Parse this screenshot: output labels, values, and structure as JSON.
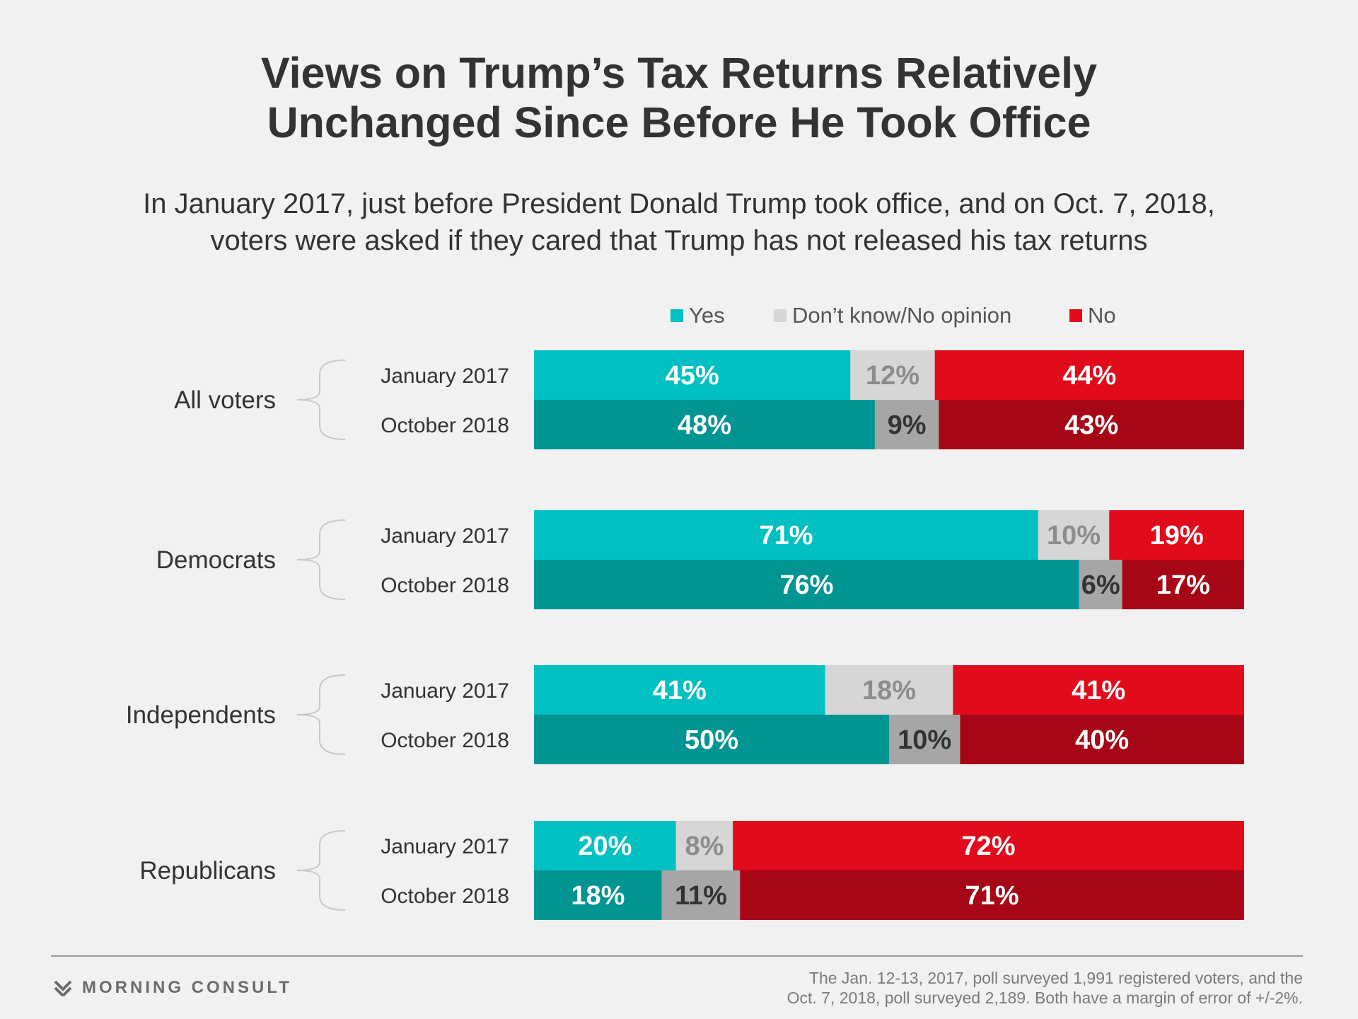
{
  "title_lines": [
    "Views on Trump’s Tax Returns Relatively",
    "Unchanged Since Before He Took Office"
  ],
  "subtitle_lines": [
    "In January 2017, just before President Donald Trump took office, and on Oct. 7, 2018,",
    "voters were asked if they cared that Trump has not released his tax returns"
  ],
  "legend": [
    {
      "label": "Yes",
      "color": "#00c0c2"
    },
    {
      "label": "Don’t know/No opinion",
      "color": "#d6d6d6"
    },
    {
      "label": "No",
      "color": "#e10b1b"
    }
  ],
  "chart_data": {
    "type": "bar",
    "orientation": "horizontal",
    "stacked": true,
    "percent_scale": true,
    "legend_position": "top",
    "segment_labels": [
      "Yes",
      "Don’t know/No opinion",
      "No"
    ],
    "colors": {
      "January 2017": [
        "#00c0c2",
        "#d6d6d6",
        "#e10b1b"
      ],
      "October 2018": [
        "#009492",
        "#a6a6a6",
        "#a60615"
      ]
    },
    "label_colors": {
      "January 2017": [
        "#ffffff",
        "#8c8c8c",
        "#ffffff"
      ],
      "October 2018": [
        "#ffffff",
        "#333333",
        "#ffffff"
      ]
    },
    "groups": [
      {
        "name": "All voters",
        "rows": [
          {
            "label": "January 2017",
            "values": [
              45,
              12,
              44
            ]
          },
          {
            "label": "October 2018",
            "values": [
              48,
              9,
              43
            ]
          }
        ]
      },
      {
        "name": "Democrats",
        "rows": [
          {
            "label": "January 2017",
            "values": [
              71,
              10,
              19
            ]
          },
          {
            "label": "October 2018",
            "values": [
              76,
              6,
              17
            ]
          }
        ]
      },
      {
        "name": "Independents",
        "rows": [
          {
            "label": "January 2017",
            "values": [
              41,
              18,
              41
            ]
          },
          {
            "label": "October 2018",
            "values": [
              50,
              10,
              40
            ]
          }
        ]
      },
      {
        "name": "Republicans",
        "rows": [
          {
            "label": "January 2017",
            "values": [
              20,
              8,
              72
            ]
          },
          {
            "label": "October 2018",
            "values": [
              18,
              11,
              71
            ]
          }
        ]
      }
    ]
  },
  "footer": {
    "logo_text": "MORNING CONSULT",
    "note_lines": [
      "The Jan. 12-13, 2017, poll surveyed 1,991 registered voters, and the",
      "Oct. 7, 2018, poll surveyed 2,189. Both have a margin of error of +/-2%."
    ]
  }
}
